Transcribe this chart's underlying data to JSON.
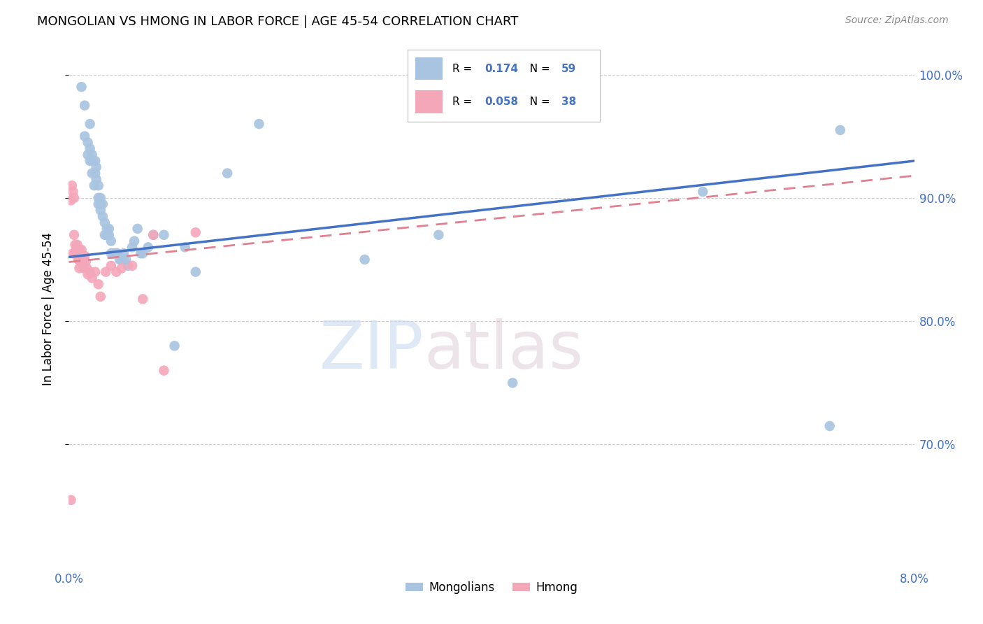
{
  "title": "MONGOLIAN VS HMONG IN LABOR FORCE | AGE 45-54 CORRELATION CHART",
  "source": "Source: ZipAtlas.com",
  "ylabel": "In Labor Force | Age 45-54",
  "xlim": [
    0.0,
    0.08
  ],
  "ylim": [
    0.6,
    1.02
  ],
  "ytick_labels": [
    "70.0%",
    "80.0%",
    "90.0%",
    "100.0%"
  ],
  "ytick_positions": [
    0.7,
    0.8,
    0.9,
    1.0
  ],
  "xtick_positions": [
    0.0,
    0.08
  ],
  "xtick_labels": [
    "0.0%",
    "8.0%"
  ],
  "legend_R_mongolian": "0.174",
  "legend_N_mongolian": "59",
  "legend_R_hmong": "0.058",
  "legend_N_hmong": "38",
  "mongolian_color": "#a8c4e0",
  "hmong_color": "#f4a7b9",
  "mongolian_line_color": "#4472c4",
  "hmong_line_color": "#e08090",
  "watermark_zip": "ZIP",
  "watermark_atlas": "atlas",
  "background_color": "#ffffff",
  "grid_color": "#cccccc",
  "mongolian_x": [
    0.0012,
    0.0015,
    0.0015,
    0.0018,
    0.0018,
    0.002,
    0.002,
    0.002,
    0.0022,
    0.0022,
    0.0022,
    0.0024,
    0.0025,
    0.0025,
    0.0026,
    0.0026,
    0.0028,
    0.0028,
    0.0028,
    0.003,
    0.003,
    0.003,
    0.0032,
    0.0032,
    0.0034,
    0.0034,
    0.0036,
    0.0036,
    0.0038,
    0.0038,
    0.004,
    0.004,
    0.0042,
    0.0044,
    0.0046,
    0.0048,
    0.005,
    0.0052,
    0.0054,
    0.0056,
    0.006,
    0.0062,
    0.0065,
    0.0068,
    0.007,
    0.0075,
    0.008,
    0.009,
    0.01,
    0.011,
    0.012,
    0.015,
    0.018,
    0.028,
    0.035,
    0.042,
    0.06,
    0.072,
    0.073
  ],
  "mongolian_y": [
    0.99,
    0.95,
    0.975,
    0.935,
    0.945,
    0.93,
    0.94,
    0.96,
    0.92,
    0.93,
    0.935,
    0.91,
    0.92,
    0.93,
    0.915,
    0.925,
    0.91,
    0.9,
    0.895,
    0.89,
    0.895,
    0.9,
    0.885,
    0.895,
    0.87,
    0.88,
    0.875,
    0.87,
    0.87,
    0.875,
    0.855,
    0.865,
    0.855,
    0.855,
    0.855,
    0.85,
    0.85,
    0.855,
    0.85,
    0.845,
    0.86,
    0.865,
    0.875,
    0.855,
    0.855,
    0.86,
    0.87,
    0.87,
    0.78,
    0.86,
    0.84,
    0.92,
    0.96,
    0.85,
    0.87,
    0.75,
    0.905,
    0.715,
    0.955
  ],
  "hmong_x": [
    0.0002,
    0.0003,
    0.0004,
    0.0004,
    0.0005,
    0.0005,
    0.0006,
    0.0006,
    0.0007,
    0.0008,
    0.0008,
    0.0009,
    0.001,
    0.001,
    0.001,
    0.0011,
    0.0012,
    0.0012,
    0.0013,
    0.0014,
    0.0015,
    0.0016,
    0.0017,
    0.0018,
    0.002,
    0.0022,
    0.0025,
    0.0028,
    0.003,
    0.0035,
    0.004,
    0.0045,
    0.005,
    0.006,
    0.007,
    0.008,
    0.009,
    0.012
  ],
  "hmong_y": [
    0.898,
    0.91,
    0.855,
    0.905,
    0.9,
    0.87,
    0.855,
    0.862,
    0.858,
    0.862,
    0.858,
    0.85,
    0.858,
    0.85,
    0.843,
    0.848,
    0.858,
    0.852,
    0.848,
    0.843,
    0.853,
    0.848,
    0.843,
    0.838,
    0.84,
    0.835,
    0.84,
    0.83,
    0.82,
    0.84,
    0.845,
    0.84,
    0.843,
    0.845,
    0.818,
    0.87,
    0.76,
    0.872
  ],
  "hmong_outlier_x": [
    0.0002
  ],
  "hmong_outlier_y": [
    0.655
  ]
}
